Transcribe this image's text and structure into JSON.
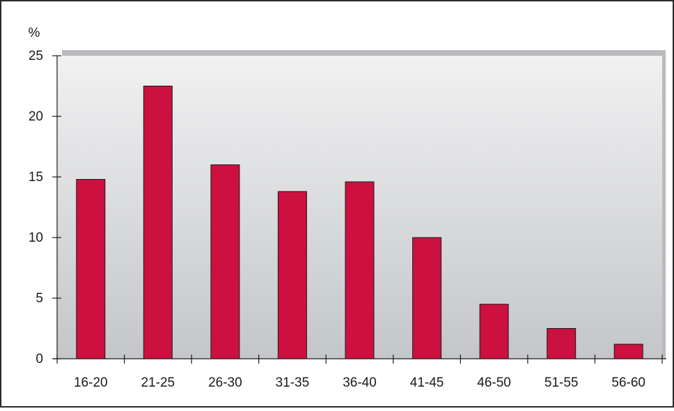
{
  "chart_data": {
    "type": "bar",
    "title": "",
    "xlabel": "",
    "ylabel": "%",
    "ylim": [
      0,
      25
    ],
    "yticks": [
      0,
      5,
      10,
      15,
      20,
      25
    ],
    "grid": false,
    "categories": [
      "16-20",
      "21-25",
      "26-30",
      "31-35",
      "36-40",
      "41-45",
      "46-50",
      "51-55",
      "56-60"
    ],
    "values": [
      14.8,
      22.5,
      16.0,
      13.8,
      14.6,
      10.0,
      4.5,
      2.5,
      1.2
    ]
  },
  "colors": {
    "bar": "#cc1040",
    "bar_stroke": "#1a1a1a",
    "plot_top": "#f1f1f2",
    "plot_bottom": "#c4c6c9",
    "axis": "#1a1a1a",
    "frame": "#2a2a2a",
    "plot_shadow": "#b9bbbe"
  }
}
